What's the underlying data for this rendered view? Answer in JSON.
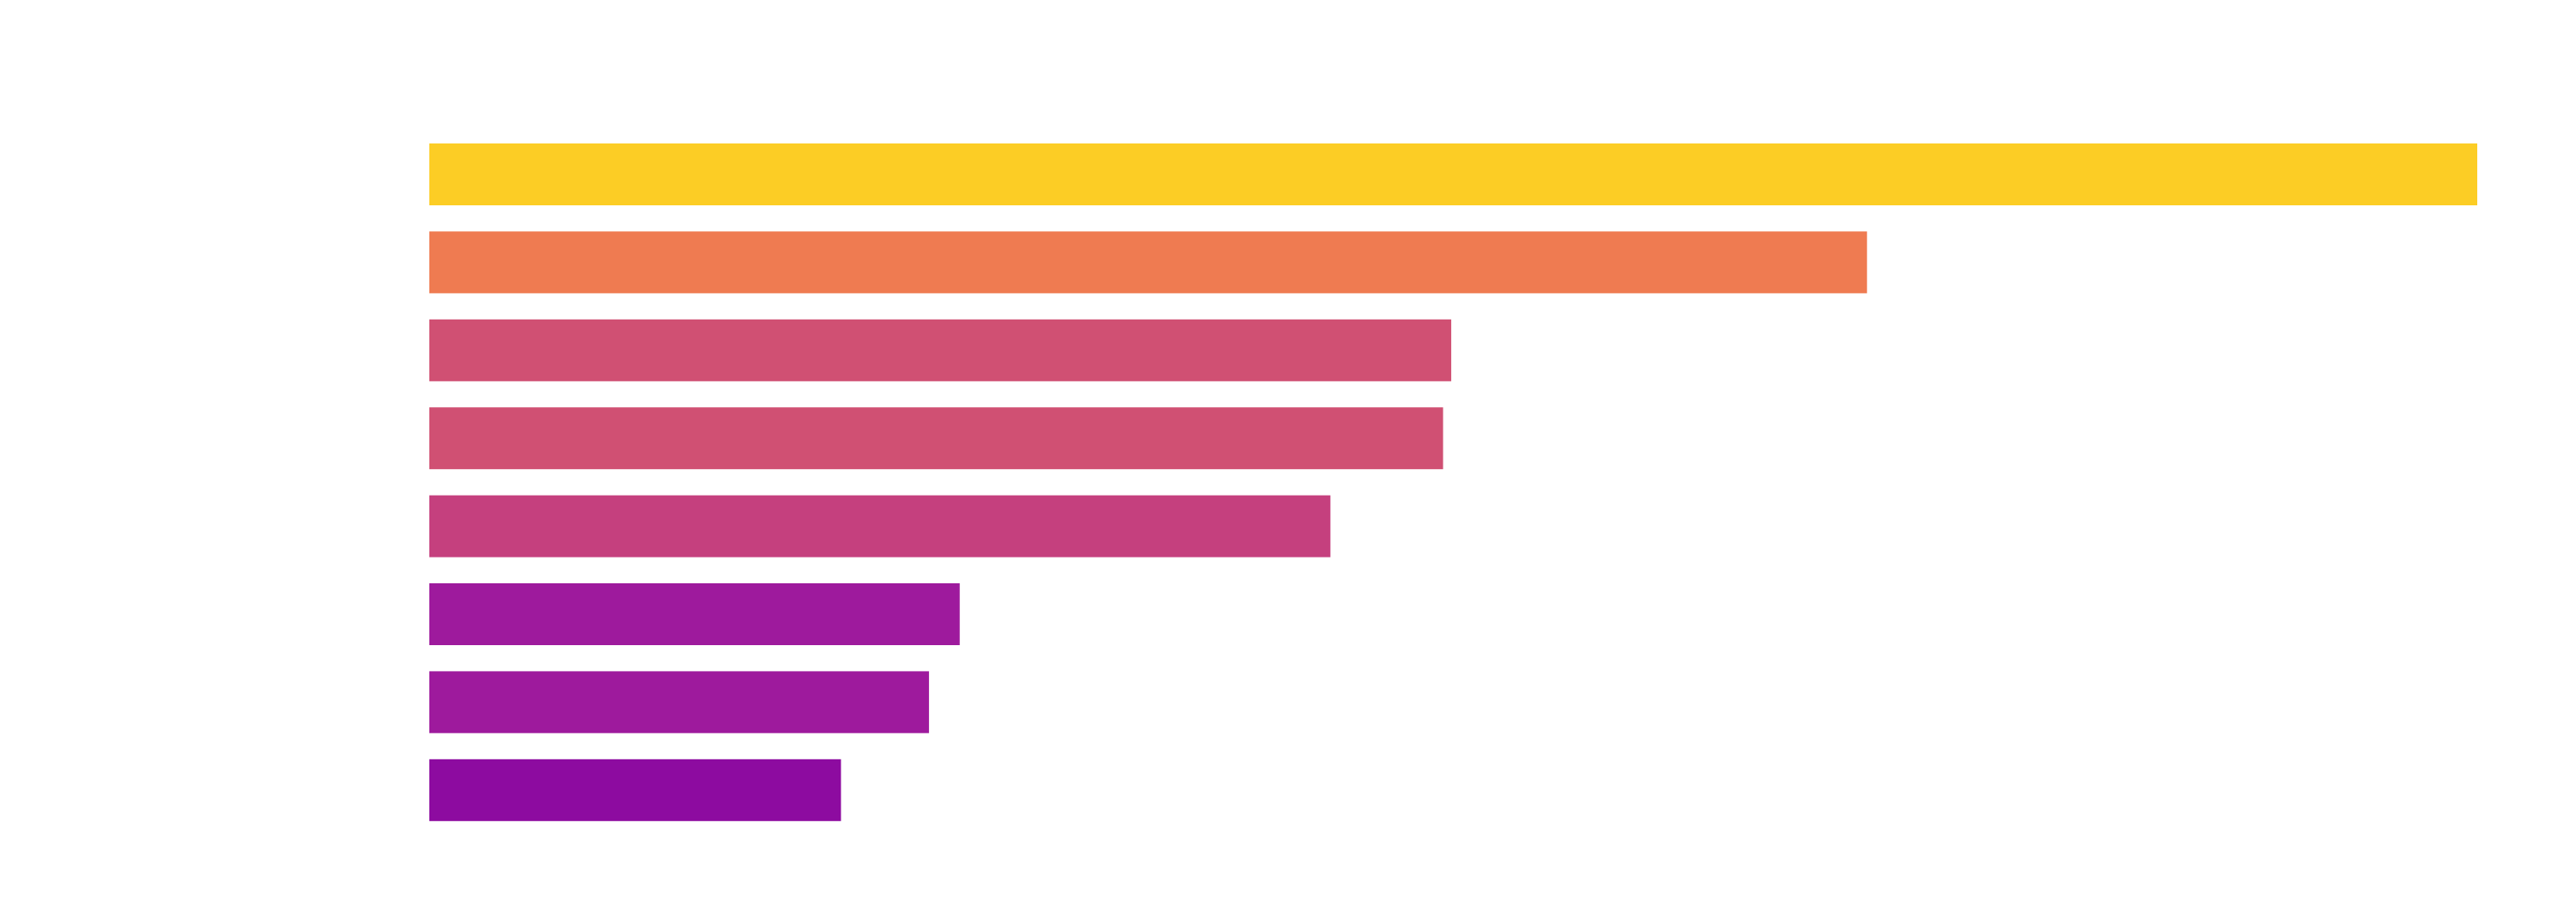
{
  "chart_data": {
    "type": "bar",
    "orientation": "horizontal",
    "values": [
      100,
      70.2,
      49.9,
      49.5,
      44.0,
      25.9,
      24.4,
      20.1
    ],
    "colors": [
      "#fccd25",
      "#ef7b51",
      "#d05073",
      "#d05073",
      "#c5407e",
      "#9e1a9d",
      "#9e1a9d",
      "#8d0ba0"
    ],
    "xlim": [
      0,
      100
    ],
    "grid": false,
    "legend": "none"
  }
}
